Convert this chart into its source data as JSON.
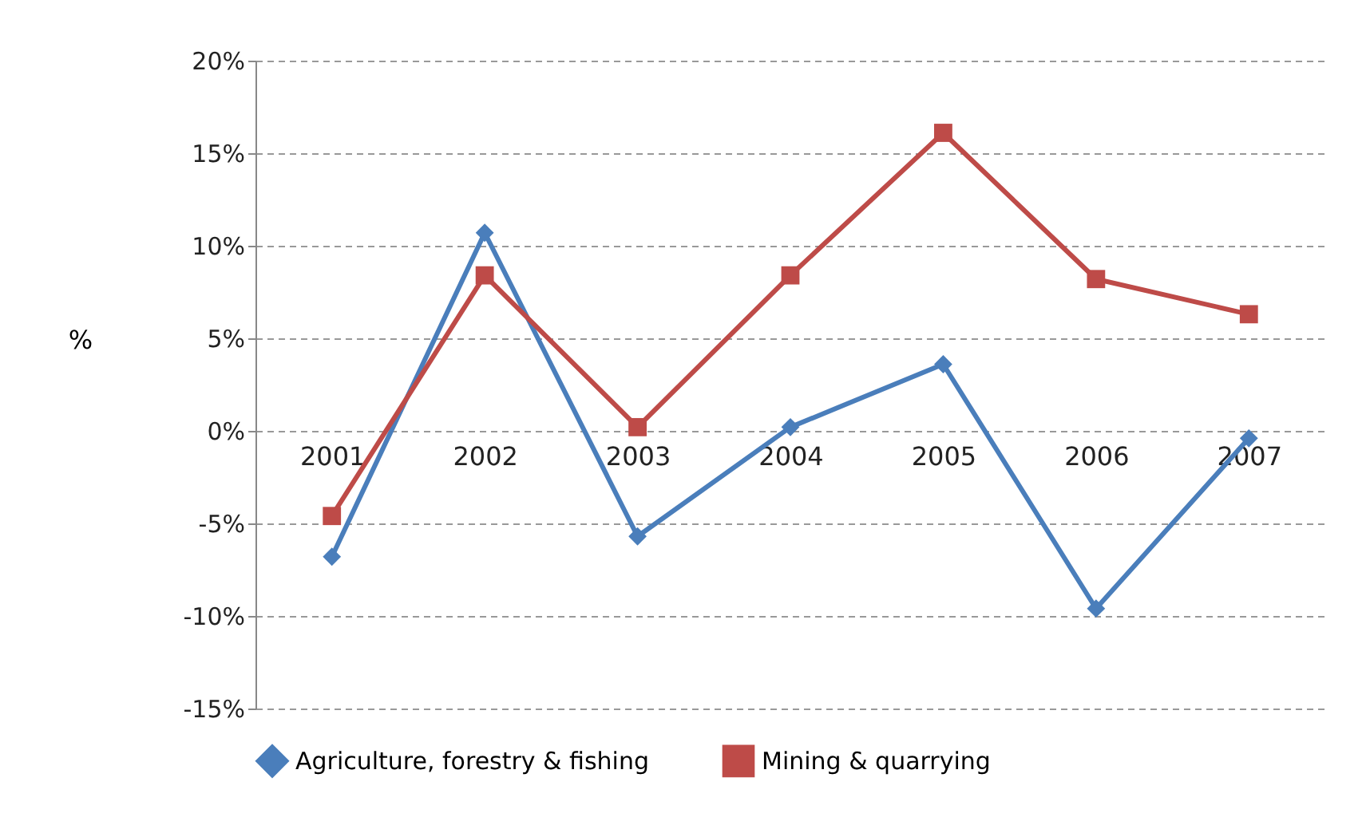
{
  "chart_data": {
    "type": "line",
    "ylabel": "%",
    "categories": [
      "2001",
      "2002",
      "2003",
      "2004",
      "2005",
      "2006",
      "2007"
    ],
    "series": [
      {
        "name": "Agriculture, forestry & fishing",
        "color": "#4a7ebb",
        "marker": "diamond",
        "values": [
          -6.8,
          10.7,
          -5.7,
          0.2,
          3.6,
          -9.6,
          -0.4
        ]
      },
      {
        "name": "Mining & quarrying",
        "color": "#be4b48",
        "marker": "square",
        "values": [
          -4.6,
          8.4,
          0.2,
          8.4,
          16.1,
          8.2,
          6.3
        ]
      }
    ],
    "ylim": [
      -15,
      20
    ],
    "yticks": [
      {
        "value": -15,
        "label": "-15%"
      },
      {
        "value": -10,
        "label": "-10%"
      },
      {
        "value": -5,
        "label": "-5%"
      },
      {
        "value": 0,
        "label": "0%"
      },
      {
        "value": 5,
        "label": "5%"
      },
      {
        "value": 10,
        "label": "10%"
      },
      {
        "value": 15,
        "label": "15%"
      },
      {
        "value": 20,
        "label": "20%"
      }
    ],
    "grid": "y",
    "legend": "bottom",
    "line_style": "solid"
  }
}
